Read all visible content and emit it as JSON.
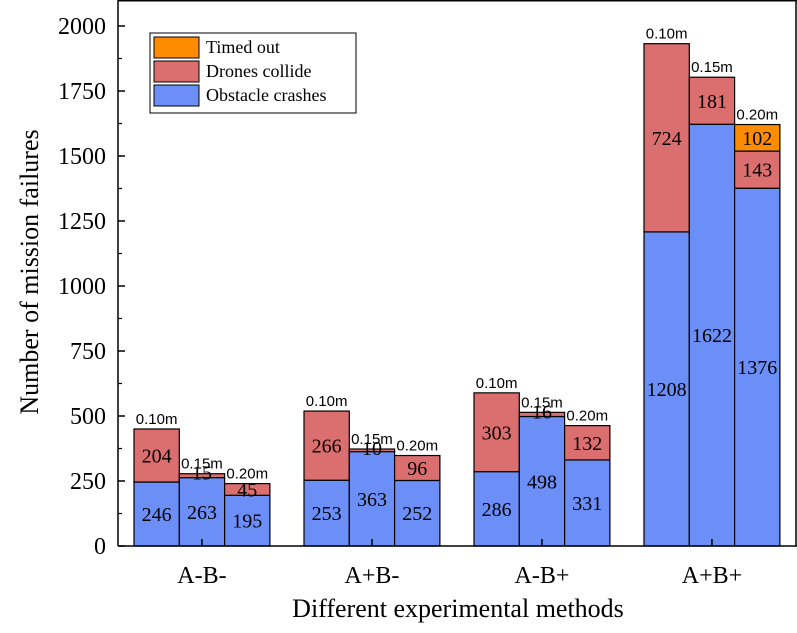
{
  "chart_data": {
    "type": "bar",
    "stacked": true,
    "xlabel": "Different experimental methods",
    "ylabel": "Number of mission failures",
    "ylim": [
      0,
      2100
    ],
    "yticks": [
      0,
      250,
      500,
      750,
      1000,
      1250,
      1500,
      1750,
      2000
    ],
    "categories": [
      "A-B-",
      "A+B-",
      "A-B+",
      "A+B+"
    ],
    "legend_position": "top-left",
    "series": [
      {
        "name": "Obstacle crashes",
        "color": "#6b8ef7"
      },
      {
        "name": "Drones collide",
        "color": "#db6e6e"
      },
      {
        "name": "Timed out",
        "color": "#ff8c00"
      }
    ],
    "groups": [
      {
        "category": "A-B-",
        "bars": [
          {
            "label": "0.10m",
            "obstacle": 246,
            "collide": 204,
            "timeout": 0
          },
          {
            "label": "0.15m",
            "obstacle": 263,
            "collide": 15,
            "timeout": 0
          },
          {
            "label": "0.20m",
            "obstacle": 195,
            "collide": 45,
            "timeout": 0
          }
        ]
      },
      {
        "category": "A+B-",
        "bars": [
          {
            "label": "0.10m",
            "obstacle": 253,
            "collide": 266,
            "timeout": 0
          },
          {
            "label": "0.15m",
            "obstacle": 363,
            "collide": 10,
            "timeout": 0
          },
          {
            "label": "0.20m",
            "obstacle": 252,
            "collide": 96,
            "timeout": 0
          }
        ]
      },
      {
        "category": "A-B+",
        "bars": [
          {
            "label": "0.10m",
            "obstacle": 286,
            "collide": 303,
            "timeout": 0
          },
          {
            "label": "0.15m",
            "obstacle": 498,
            "collide": 16,
            "timeout": 0
          },
          {
            "label": "0.20m",
            "obstacle": 331,
            "collide": 132,
            "timeout": 0
          }
        ]
      },
      {
        "category": "A+B+",
        "bars": [
          {
            "label": "0.10m",
            "obstacle": 1208,
            "collide": 724,
            "timeout": 0
          },
          {
            "label": "0.15m",
            "obstacle": 1622,
            "collide": 181,
            "timeout": 0
          },
          {
            "label": "0.20m",
            "obstacle": 1376,
            "collide": 143,
            "timeout": 102
          }
        ]
      }
    ]
  }
}
